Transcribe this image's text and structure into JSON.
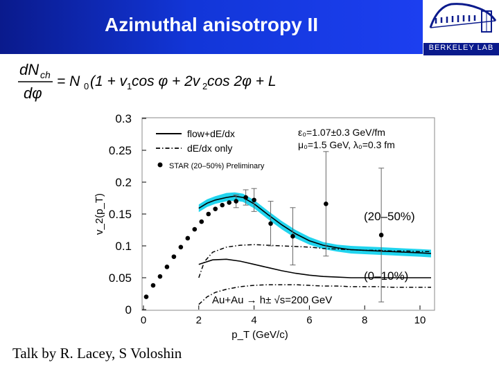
{
  "slide": {
    "title": "Azimuthal anisotropy II",
    "footer": "Talk by R. Lacey, S Voloshin",
    "logo_text": "BERKELEY LAB"
  },
  "equation": {
    "lhs_num": "dN",
    "lhs_num_sub": "ch",
    "lhs_den": "dφ",
    "rhs_a": "= N",
    "rhs_a_sub": "0",
    "rhs_b": "(1 + v",
    "rhs_b_sub": "1",
    "rhs_c": " cos φ + 2v",
    "rhs_c_sub": "2",
    "rhs_d": " cos 2φ + L )"
  },
  "colors": {
    "band": "#21d4ee",
    "text": "#000000",
    "header_start": "#0a1a8c",
    "header_end": "#1c3ff0"
  },
  "chart_data": {
    "type": "line",
    "xlabel": "p_T (GeV/c)",
    "ylabel": "v_2(p_T)",
    "xlim": [
      0,
      10.5
    ],
    "ylim": [
      0,
      0.3
    ],
    "xticks": [
      "0",
      "2",
      "4",
      "6",
      "8",
      "10"
    ],
    "yticks": [
      "0",
      "0.05",
      "0.1",
      "0.15",
      "0.2",
      "0.25",
      "0.3"
    ],
    "legend": [
      {
        "label": "flow+dE/dx",
        "style": "solid"
      },
      {
        "label": "dE/dx only",
        "style": "dashdot"
      },
      {
        "label": "STAR (20–50%) Preliminary",
        "style": "marker"
      }
    ],
    "parameters": [
      "ε₀=1.07±0.3 GeV/fm",
      "μ₀=1.5 GeV, λ₀=0.3 fm"
    ],
    "annotations": [
      "(20–50%)",
      "(0–10%)",
      "Au+Au → h± √s=200 GeV"
    ],
    "band": {
      "x": [
        2.0,
        2.3,
        2.6,
        3.0,
        3.3,
        3.6,
        4.0,
        4.5,
        5.0,
        5.5,
        6.0,
        6.5,
        7.0,
        7.5,
        8.0,
        8.5,
        9.0,
        9.5,
        10.0,
        10.4
      ],
      "lower": [
        0.153,
        0.161,
        0.166,
        0.17,
        0.171,
        0.169,
        0.159,
        0.142,
        0.126,
        0.112,
        0.102,
        0.095,
        0.091,
        0.088,
        0.087,
        0.086,
        0.085,
        0.084,
        0.083,
        0.082
      ],
      "upper": [
        0.165,
        0.173,
        0.178,
        0.183,
        0.184,
        0.182,
        0.172,
        0.155,
        0.139,
        0.125,
        0.114,
        0.106,
        0.102,
        0.1,
        0.099,
        0.098,
        0.097,
        0.096,
        0.095,
        0.094
      ]
    },
    "series": [
      {
        "name": "flow+dE/dx",
        "style": "solid",
        "x": [
          2.0,
          2.3,
          2.6,
          3.0,
          3.3,
          3.6,
          4.0,
          4.5,
          5.0,
          5.5,
          6.0,
          6.5,
          7.0,
          7.5,
          8.0,
          8.5,
          9.0,
          9.5,
          10.0,
          10.4
        ],
        "values": [
          0.159,
          0.167,
          0.172,
          0.176,
          0.178,
          0.176,
          0.166,
          0.149,
          0.133,
          0.119,
          0.108,
          0.101,
          0.097,
          0.094,
          0.093,
          0.092,
          0.091,
          0.09,
          0.089,
          0.088
        ]
      },
      {
        "name": "flow+dE/dx (0–10%)",
        "style": "solid",
        "x": [
          2.0,
          2.5,
          3.0,
          3.5,
          4.0,
          4.5,
          5.0,
          5.5,
          6.0,
          6.5,
          7.0,
          7.5,
          8.0,
          8.5,
          9.0,
          9.5,
          10.0,
          10.4
        ],
        "values": [
          0.071,
          0.078,
          0.079,
          0.076,
          0.071,
          0.066,
          0.061,
          0.057,
          0.054,
          0.052,
          0.051,
          0.05,
          0.05,
          0.05,
          0.05,
          0.05,
          0.05,
          0.05
        ]
      },
      {
        "name": "dE/dx only",
        "style": "dashdot",
        "x": [
          2.0,
          2.2,
          2.5,
          3.0,
          3.5,
          4.0,
          4.5,
          5.0,
          5.5,
          6.0,
          6.5,
          7.0,
          7.5,
          8.0,
          8.5,
          9.0,
          9.5,
          10.0,
          10.4
        ],
        "values": [
          0.05,
          0.075,
          0.09,
          0.098,
          0.101,
          0.102,
          0.101,
          0.1,
          0.099,
          0.098,
          0.096,
          0.095,
          0.094,
          0.093,
          0.093,
          0.092,
          0.092,
          0.091,
          0.091
        ]
      },
      {
        "name": "dE/dx only (0–10%)",
        "style": "dashdot",
        "x": [
          2.0,
          2.3,
          2.6,
          3.0,
          3.5,
          4.0,
          4.5,
          5.0,
          5.5,
          6.0,
          6.5,
          7.0,
          7.5,
          8.0,
          8.5,
          9.0,
          9.5,
          10.0,
          10.4
        ],
        "values": [
          0.008,
          0.02,
          0.027,
          0.032,
          0.036,
          0.038,
          0.039,
          0.039,
          0.039,
          0.038,
          0.037,
          0.037,
          0.036,
          0.036,
          0.036,
          0.035,
          0.035,
          0.035,
          0.035
        ]
      },
      {
        "name": "STAR (20–50%) Preliminary",
        "style": "marker",
        "x": [
          0.1,
          0.35,
          0.6,
          0.85,
          1.1,
          1.35,
          1.6,
          1.85,
          2.1,
          2.35,
          2.6,
          2.85,
          3.1,
          3.35,
          3.7,
          4.0,
          4.6,
          5.4,
          6.6,
          8.6
        ],
        "values": [
          0.02,
          0.038,
          0.052,
          0.067,
          0.083,
          0.098,
          0.112,
          0.126,
          0.138,
          0.15,
          0.158,
          0.164,
          0.168,
          0.17,
          0.176,
          0.172,
          0.135,
          0.115,
          0.166,
          0.117
        ],
        "errors": [
          0,
          0,
          0,
          0,
          0,
          0,
          0,
          0,
          0,
          0,
          0,
          0,
          0,
          0.01,
          0.012,
          0.018,
          0.035,
          0.045,
          0.082,
          0.105
        ]
      }
    ]
  }
}
